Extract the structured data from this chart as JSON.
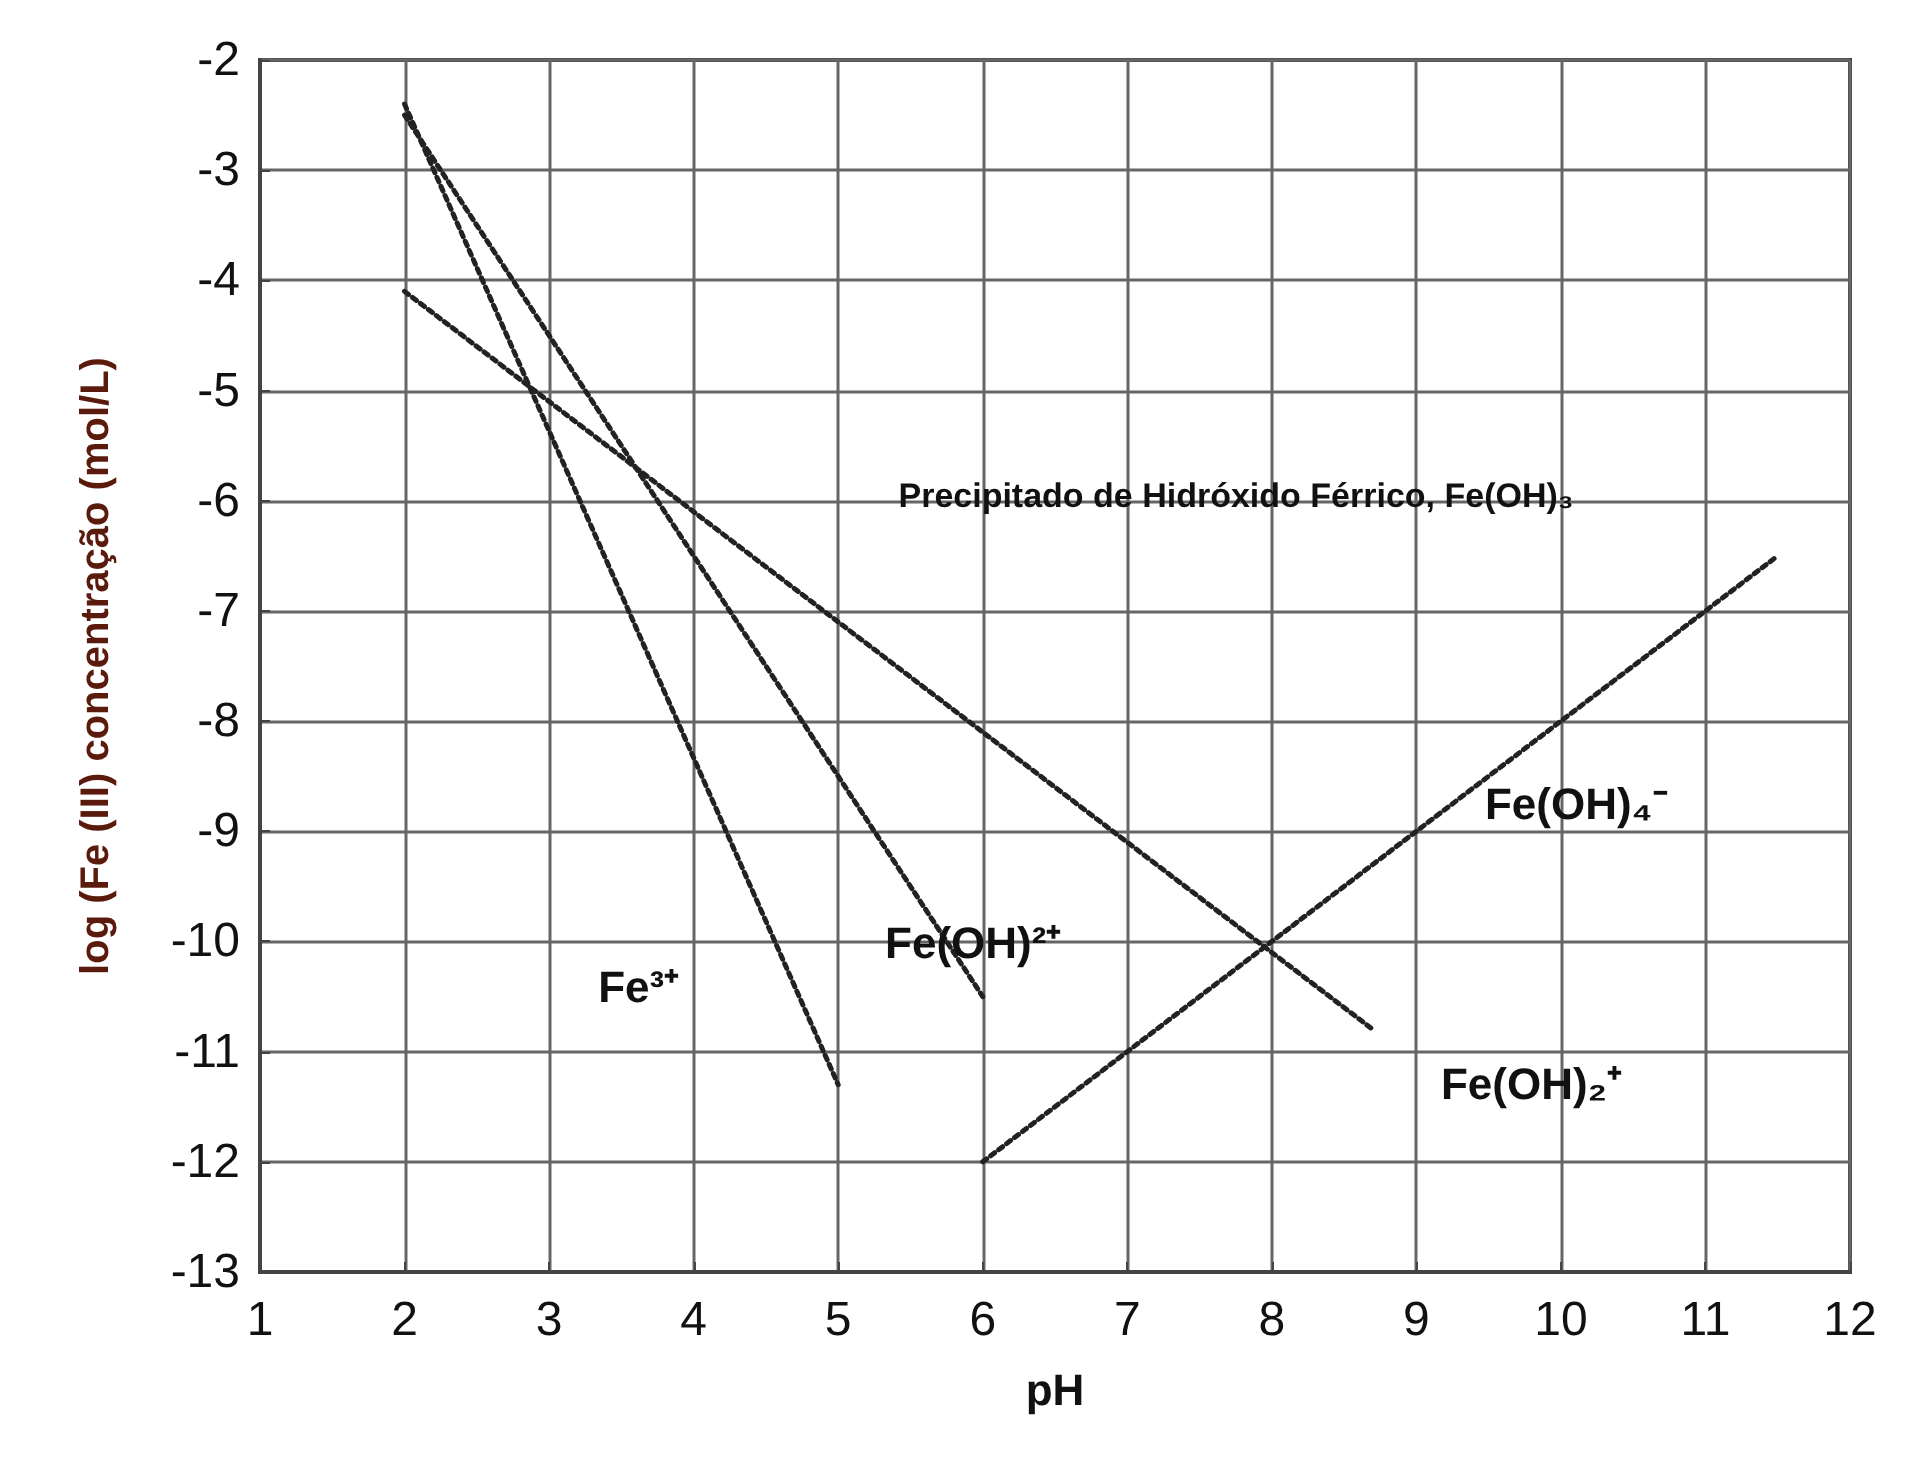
{
  "chart_data": {
    "type": "line",
    "xlabel": "pH",
    "ylabel": "log (Fe (III) concentração (mol/L)",
    "xlim": [
      1,
      12
    ],
    "ylim": [
      -13,
      -2
    ],
    "xticks": [
      1,
      2,
      3,
      4,
      5,
      6,
      7,
      8,
      9,
      10,
      11,
      12
    ],
    "yticks": [
      -13,
      -12,
      -11,
      -10,
      -9,
      -8,
      -7,
      -6,
      -5,
      -4,
      -3,
      -2
    ],
    "grid": true,
    "marker": "none",
    "line_style": "dotted",
    "series": [
      {
        "name": "Fe³⁺",
        "color": "#222222",
        "x": [
          2,
          5
        ],
        "values": [
          -2.4,
          -11.3
        ]
      },
      {
        "name": "Fe(OH)²⁺",
        "color": "#222222",
        "x": [
          2,
          6
        ],
        "values": [
          -2.5,
          -10.5
        ]
      },
      {
        "name": "Fe(OH)₂⁺",
        "color": "#222222",
        "x": [
          2,
          8.7
        ],
        "values": [
          -4.1,
          -10.8
        ]
      },
      {
        "name": "Fe(OH)₄⁻",
        "color": "#222222",
        "x": [
          6,
          11.5
        ],
        "values": [
          -12,
          -6.5
        ]
      }
    ],
    "annotations": [
      "Precipitado de Hidróxido Férrico, Fe(OH)₃"
    ]
  }
}
